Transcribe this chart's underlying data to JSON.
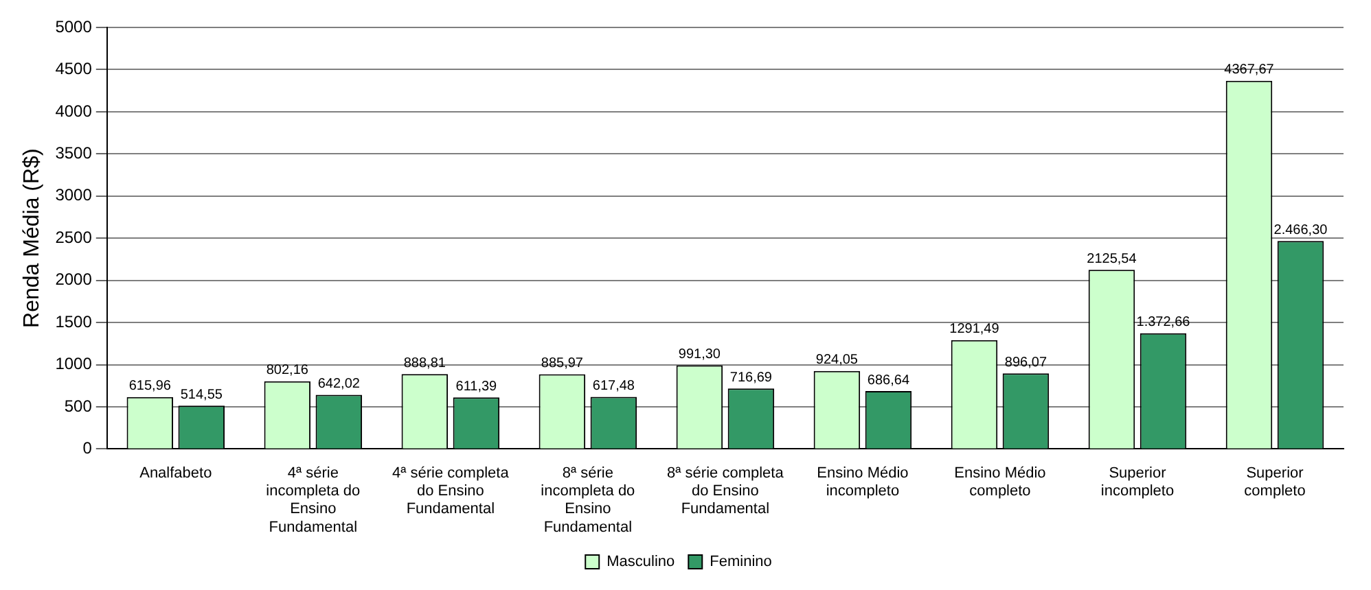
{
  "chart_data": {
    "type": "bar",
    "ylabel": "Renda Média (R$)",
    "categories": [
      "Analfabeto",
      "4ª série incompleta do Ensino Fundamental",
      "4ª série completa do Ensino Fundamental",
      "8ª série incompleta do Ensino Fundamental",
      "8ª série completa do Ensino Fundamental",
      "Ensino Médio incompleto",
      "Ensino Médio completo",
      "Superior incompleto",
      "Superior completo"
    ],
    "series": [
      {
        "name": "Masculino",
        "color": "#ccffcc",
        "values": [
          615.96,
          802.16,
          888.81,
          885.97,
          991.3,
          924.05,
          1291.49,
          2125.54,
          4367.67
        ],
        "value_labels": [
          "615,96",
          "802,16",
          "888,81",
          "885,97",
          "991,30",
          "924,05",
          "1291,49",
          "2125,54",
          "4367,67"
        ]
      },
      {
        "name": "Feminino",
        "color": "#339966",
        "values": [
          514.55,
          642.02,
          611.39,
          617.48,
          716.69,
          686.64,
          896.07,
          1372.66,
          2466.3
        ],
        "value_labels": [
          "514,55",
          "642,02",
          "611,39",
          "617,48",
          "716,69",
          "686,64",
          "896,07",
          "1.372,66",
          "2.466,30"
        ]
      }
    ],
    "ylim": [
      0,
      5000
    ],
    "yticks": [
      0,
      500,
      1000,
      1500,
      2000,
      2500,
      3000,
      3500,
      4000,
      4500,
      5000
    ],
    "grid": "y",
    "legend": "bottom"
  }
}
